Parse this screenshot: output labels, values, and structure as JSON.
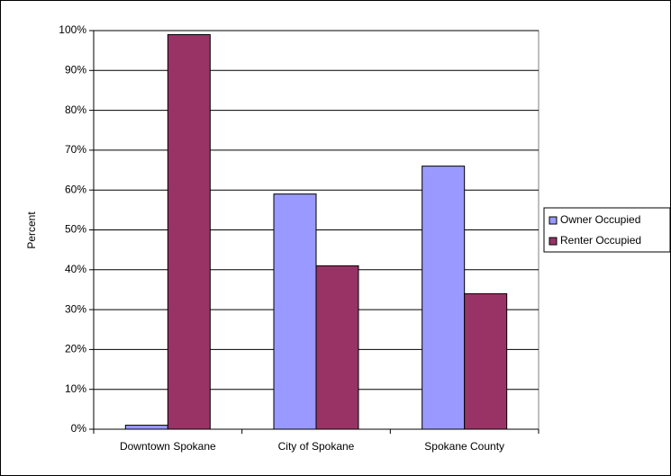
{
  "chart_data": {
    "type": "bar",
    "y_label": "Percent",
    "categories": [
      "Downtown Spokane",
      "City of Spokane",
      "Spokane County"
    ],
    "series": [
      {
        "name": "Owner Occupied",
        "color": "#9999ff",
        "values": [
          1,
          59,
          66
        ]
      },
      {
        "name": "Renter Occupied",
        "color": "#993366",
        "values": [
          99,
          41,
          34
        ]
      }
    ],
    "ylim": [
      0,
      100
    ],
    "yticks": [
      {
        "value": 0,
        "label": "0%"
      },
      {
        "value": 10,
        "label": "10%"
      },
      {
        "value": 20,
        "label": "20%"
      },
      {
        "value": 30,
        "label": "30%"
      },
      {
        "value": 40,
        "label": "40%"
      },
      {
        "value": 50,
        "label": "50%"
      },
      {
        "value": 60,
        "label": "60%"
      },
      {
        "value": 70,
        "label": "70%"
      },
      {
        "value": 80,
        "label": "80%"
      },
      {
        "value": 90,
        "label": "90%"
      },
      {
        "value": 100,
        "label": "100%"
      }
    ],
    "grid": true,
    "legend": "right"
  }
}
